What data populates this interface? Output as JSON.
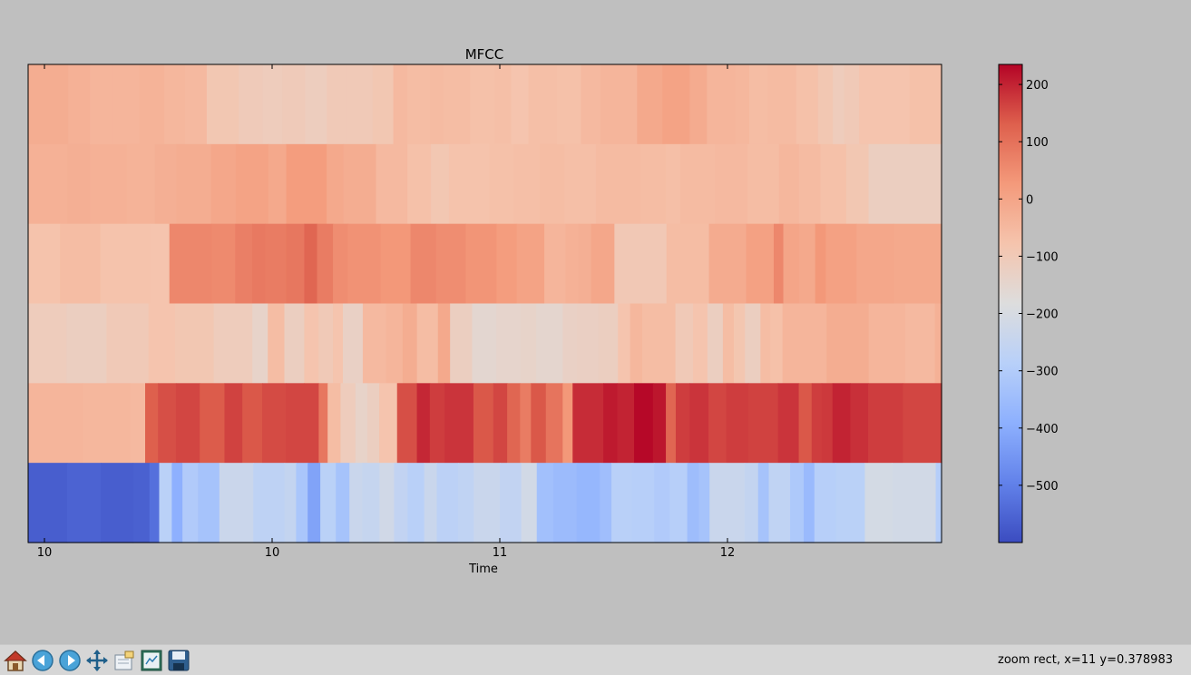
{
  "chart_data": {
    "type": "heatmap",
    "title": "MFCC",
    "xlabel": "Time",
    "ylabel": "",
    "x_tick_labels": [
      "10",
      "10",
      "11",
      "12"
    ],
    "colorbar": {
      "cmap": "coolwarm",
      "vmin": -600,
      "vmax": 235,
      "ticks": [
        200,
        100,
        0,
        -100,
        -200,
        -300,
        -400,
        -500
      ],
      "tick_labels": [
        "200",
        "100",
        "0",
        "−100",
        "−200",
        "−300",
        "−400",
        "−500"
      ]
    },
    "rows_top_to_bottom": [
      {
        "segments": [
          [
            35,
            -20
          ],
          [
            19,
            -30
          ],
          [
            20,
            -40
          ],
          [
            23,
            -40
          ],
          [
            22,
            -35
          ],
          [
            18,
            -45
          ],
          [
            19,
            -50
          ],
          [
            28,
            -90
          ],
          [
            21,
            -105
          ],
          [
            17,
            -110
          ],
          [
            20,
            -105
          ],
          [
            19,
            -115
          ],
          [
            17,
            -100
          ],
          [
            23,
            -100
          ],
          [
            18,
            -90
          ],
          [
            12,
            -50
          ],
          [
            20,
            -60
          ],
          [
            12,
            -55
          ],
          [
            23,
            -60
          ],
          [
            22,
            -70
          ],
          [
            14,
            -65
          ],
          [
            15,
            -80
          ],
          [
            25,
            -65
          ],
          [
            21,
            -70
          ],
          [
            17,
            -50
          ],
          [
            32,
            -40
          ],
          [
            22,
            -10
          ],
          [
            24,
            5
          ],
          [
            15,
            -15
          ],
          [
            25,
            -40
          ],
          [
            12,
            -45
          ],
          [
            16,
            -60
          ],
          [
            25,
            -55
          ],
          [
            19,
            -70
          ],
          [
            13,
            -90
          ],
          [
            10,
            -110
          ],
          [
            13,
            -100
          ],
          [
            44,
            -80
          ],
          [
            28,
            -70
          ]
        ]
      },
      {
        "segments": [
          [
            35,
            -30
          ],
          [
            20,
            -25
          ],
          [
            33,
            -30
          ],
          [
            25,
            -35
          ],
          [
            19,
            -25
          ],
          [
            31,
            -20
          ],
          [
            22,
            -5
          ],
          [
            29,
            5
          ],
          [
            16,
            -10
          ],
          [
            36,
            20
          ],
          [
            15,
            -10
          ],
          [
            29,
            -20
          ],
          [
            28,
            -50
          ],
          [
            21,
            -70
          ],
          [
            16,
            -90
          ],
          [
            36,
            -75
          ],
          [
            22,
            -70
          ],
          [
            23,
            -65
          ],
          [
            22,
            -60
          ],
          [
            28,
            -65
          ],
          [
            40,
            -55
          ],
          [
            22,
            -60
          ],
          [
            13,
            -65
          ],
          [
            31,
            -55
          ],
          [
            29,
            -50
          ],
          [
            28,
            -60
          ],
          [
            18,
            -45
          ],
          [
            19,
            -55
          ],
          [
            23,
            -70
          ],
          [
            20,
            -90
          ],
          [
            65,
            -120
          ]
        ]
      },
      {
        "segments": [
          [
            30,
            -75
          ],
          [
            38,
            -60
          ],
          [
            34,
            -75
          ],
          [
            13,
            -75
          ],
          [
            18,
            -80
          ],
          [
            40,
            60
          ],
          [
            22,
            55
          ],
          [
            16,
            75
          ],
          [
            12,
            85
          ],
          [
            20,
            80
          ],
          [
            17,
            90
          ],
          [
            12,
            120
          ],
          [
            15,
            80
          ],
          [
            14,
            50
          ],
          [
            31,
            40
          ],
          [
            28,
            30
          ],
          [
            24,
            60
          ],
          [
            28,
            50
          ],
          [
            29,
            35
          ],
          [
            19,
            20
          ],
          [
            26,
            5
          ],
          [
            20,
            -40
          ],
          [
            12,
            -30
          ],
          [
            12,
            -25
          ],
          [
            22,
            -5
          ],
          [
            49,
            -95
          ],
          [
            40,
            -60
          ],
          [
            35,
            -15
          ],
          [
            26,
            10
          ],
          [
            9,
            60
          ],
          [
            15,
            0
          ],
          [
            15,
            -10
          ],
          [
            10,
            30
          ],
          [
            29,
            10
          ],
          [
            35,
            -5
          ],
          [
            45,
            -10
          ]
        ]
      },
      {
        "segments": [
          [
            35,
            -110
          ],
          [
            36,
            -120
          ],
          [
            38,
            -100
          ],
          [
            24,
            -80
          ],
          [
            35,
            -90
          ],
          [
            35,
            -110
          ],
          [
            14,
            -140
          ],
          [
            15,
            -60
          ],
          [
            18,
            -120
          ],
          [
            13,
            -80
          ],
          [
            13,
            -100
          ],
          [
            9,
            -80
          ],
          [
            18,
            -130
          ],
          [
            21,
            -50
          ],
          [
            15,
            -40
          ],
          [
            13,
            -20
          ],
          [
            19,
            -60
          ],
          [
            11,
            -10
          ],
          [
            20,
            -120
          ],
          [
            22,
            -155
          ],
          [
            22,
            -145
          ],
          [
            14,
            -140
          ],
          [
            24,
            -150
          ],
          [
            13,
            -130
          ],
          [
            19,
            -125
          ],
          [
            18,
            -120
          ],
          [
            11,
            -80
          ],
          [
            11,
            -45
          ],
          [
            30,
            -60
          ],
          [
            16,
            -100
          ],
          [
            13,
            -80
          ],
          [
            14,
            -120
          ],
          [
            10,
            -60
          ],
          [
            10,
            -85
          ],
          [
            14,
            -120
          ],
          [
            9,
            -60
          ],
          [
            11,
            -70
          ],
          [
            40,
            -40
          ],
          [
            38,
            -20
          ],
          [
            33,
            -40
          ],
          [
            27,
            -50
          ],
          [
            6,
            -30
          ]
        ]
      },
      {
        "segments": [
          [
            55,
            -40
          ],
          [
            48,
            -45
          ],
          [
            15,
            -50
          ],
          [
            13,
            130
          ],
          [
            18,
            150
          ],
          [
            24,
            160
          ],
          [
            25,
            135
          ],
          [
            18,
            165
          ],
          [
            20,
            140
          ],
          [
            24,
            155
          ],
          [
            18,
            160
          ],
          [
            15,
            160
          ],
          [
            9,
            90
          ],
          [
            13,
            -60
          ],
          [
            15,
            -110
          ],
          [
            12,
            -140
          ],
          [
            12,
            -120
          ],
          [
            18,
            -80
          ],
          [
            20,
            150
          ],
          [
            13,
            195
          ],
          [
            15,
            170
          ],
          [
            29,
            180
          ],
          [
            20,
            140
          ],
          [
            14,
            160
          ],
          [
            13,
            120
          ],
          [
            11,
            80
          ],
          [
            15,
            140
          ],
          [
            17,
            95
          ],
          [
            10,
            30
          ],
          [
            31,
            190
          ],
          [
            14,
            210
          ],
          [
            17,
            200
          ],
          [
            19,
            230
          ],
          [
            13,
            215
          ],
          [
            10,
            120
          ],
          [
            14,
            170
          ],
          [
            19,
            180
          ],
          [
            18,
            160
          ],
          [
            22,
            170
          ],
          [
            30,
            165
          ],
          [
            21,
            180
          ],
          [
            13,
            140
          ],
          [
            10,
            170
          ],
          [
            11,
            175
          ],
          [
            18,
            200
          ],
          [
            18,
            185
          ],
          [
            35,
            170
          ],
          [
            39,
            160
          ]
        ]
      },
      {
        "segments": [
          [
            40,
            -565
          ],
          [
            35,
            -555
          ],
          [
            33,
            -565
          ],
          [
            17,
            -560
          ],
          [
            10,
            -530
          ],
          [
            13,
            -280
          ],
          [
            11,
            -390
          ],
          [
            16,
            -305
          ],
          [
            22,
            -330
          ],
          [
            35,
            -235
          ],
          [
            32,
            -270
          ],
          [
            12,
            -255
          ],
          [
            12,
            -320
          ],
          [
            13,
            -420
          ],
          [
            16,
            -280
          ],
          [
            14,
            -330
          ],
          [
            13,
            -240
          ],
          [
            18,
            -250
          ],
          [
            15,
            -220
          ],
          [
            14,
            -260
          ],
          [
            17,
            -285
          ],
          [
            13,
            -240
          ],
          [
            22,
            -275
          ],
          [
            16,
            -265
          ],
          [
            27,
            -240
          ],
          [
            22,
            -260
          ],
          [
            16,
            -215
          ],
          [
            17,
            -340
          ],
          [
            24,
            -355
          ],
          [
            24,
            -370
          ],
          [
            12,
            -345
          ],
          [
            21,
            -285
          ],
          [
            23,
            -290
          ],
          [
            16,
            -305
          ],
          [
            18,
            -290
          ],
          [
            12,
            -350
          ],
          [
            11,
            -330
          ],
          [
            36,
            -240
          ],
          [
            14,
            -255
          ],
          [
            11,
            -330
          ],
          [
            22,
            -265
          ],
          [
            14,
            -310
          ],
          [
            11,
            -360
          ],
          [
            22,
            -290
          ],
          [
            30,
            -280
          ],
          [
            28,
            -210
          ],
          [
            45,
            -215
          ],
          [
            6,
            -295
          ]
        ]
      }
    ]
  },
  "toolbar": {
    "buttons": [
      "home-icon",
      "back-icon",
      "forward-icon",
      "pan-icon",
      "subplots-icon",
      "zoom-icon",
      "save-icon"
    ],
    "status": "zoom rect, x=11 y=0.378983"
  }
}
